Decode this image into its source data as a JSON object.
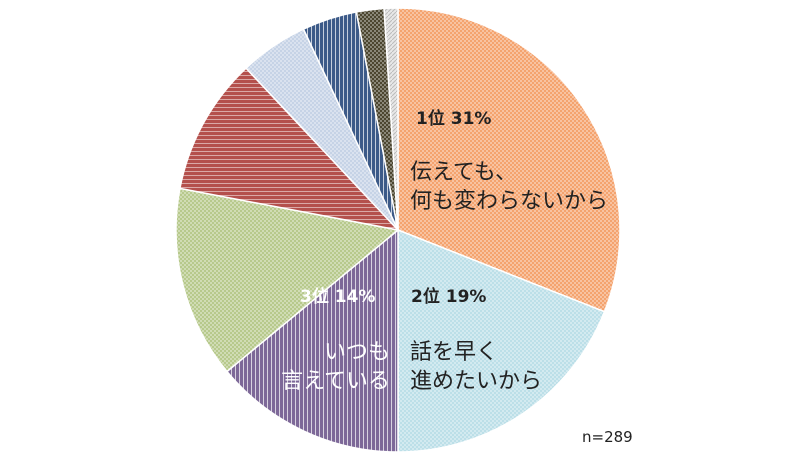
{
  "chart_data": {
    "type": "pie",
    "title": "",
    "note": "n=289",
    "slices": [
      {
        "value": 31,
        "color": "#f4a36e",
        "pattern": "check"
      },
      {
        "value": 19,
        "color": "#bcdfe8",
        "pattern": "check"
      },
      {
        "value": 14,
        "color": "#7d6898",
        "pattern": "vertical"
      },
      {
        "value": 14,
        "color": "#b7c98c",
        "pattern": "check"
      },
      {
        "value": 10,
        "color": "#b4504c",
        "pattern": "horizontal"
      },
      {
        "value": 5,
        "color": "#c6d3e6",
        "pattern": "check"
      },
      {
        "value": 4,
        "color": "#3c5a88",
        "pattern": "vertical"
      },
      {
        "value": 2,
        "color": "#4c4630",
        "pattern": "check"
      },
      {
        "value": 1,
        "color": "#e8e8e8",
        "pattern": "diagonal"
      }
    ],
    "labels": [
      {
        "rank": "1位  31%",
        "reason": [
          "伝えても、",
          "何も変わらないから"
        ]
      },
      {
        "rank": "2位  19%",
        "reason": [
          "話を早く",
          "進めたいから"
        ]
      },
      {
        "rank": "3位  14%",
        "reason": [
          "いつも",
          "言えている"
        ]
      }
    ]
  }
}
